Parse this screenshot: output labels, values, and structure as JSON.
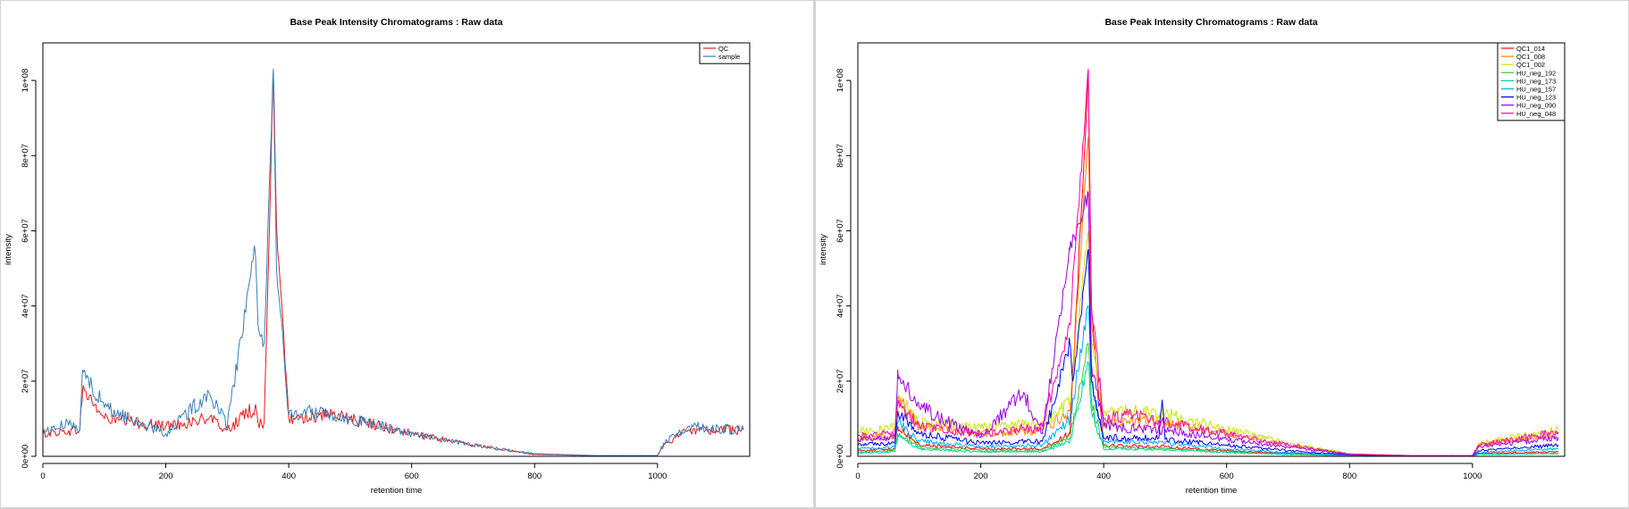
{
  "chart_data": [
    {
      "type": "line",
      "title": "Base Peak Intensity Chromatograms : Raw data",
      "xlabel": "retention time",
      "ylabel": "intensity",
      "xlim": [
        0,
        1150
      ],
      "ylim": [
        0,
        110000000
      ],
      "x_ticks": [
        0,
        200,
        400,
        600,
        800,
        1000
      ],
      "x_tick_labels": [
        "0",
        "200",
        "400",
        "600",
        "800",
        "1000"
      ],
      "y_ticks": [
        0,
        20000000,
        40000000,
        60000000,
        80000000,
        100000000
      ],
      "y_tick_labels": [
        "0e+00",
        "2e+07",
        "4e+07",
        "6e+07",
        "8e+07",
        "1e+08"
      ],
      "grid": false,
      "legend_position": "top-right",
      "legend": [
        {
          "name": "QC",
          "color": "#e41a1c"
        },
        {
          "name": "sample",
          "color": "#377eb8"
        }
      ],
      "series": [
        {
          "name": "QC",
          "color": "#e41a1c",
          "x": [
            0,
            60,
            65,
            100,
            200,
            270,
            300,
            345,
            350,
            360,
            375,
            380,
            400,
            450,
            500,
            600,
            700,
            800,
            900,
            1000,
            1010,
            1050,
            1140
          ],
          "y": [
            6000000,
            7000000,
            18000000,
            10000000,
            8000000,
            10000000,
            7000000,
            13000000,
            9000000,
            9000000,
            102000000,
            62000000,
            10000000,
            11000000,
            10000000,
            6000000,
            3000000,
            500000,
            200000,
            200000,
            3000000,
            7000000,
            7000000
          ]
        },
        {
          "name": "sample",
          "color": "#377eb8",
          "x": [
            0,
            50,
            60,
            65,
            100,
            200,
            270,
            300,
            345,
            350,
            360,
            375,
            380,
            400,
            450,
            500,
            600,
            700,
            800,
            900,
            1000,
            1010,
            1050,
            1140
          ],
          "y": [
            6500000,
            9000000,
            7000000,
            23000000,
            13000000,
            6000000,
            17000000,
            8000000,
            55000000,
            35000000,
            30000000,
            103000000,
            50000000,
            11000000,
            12000000,
            10000000,
            6000000,
            3000000,
            700000,
            200000,
            200000,
            3500000,
            8000000,
            7000000
          ]
        }
      ]
    },
    {
      "type": "line",
      "title": "Base Peak Intensity Chromatograms : Raw data",
      "xlabel": "retention time",
      "ylabel": "intensity",
      "xlim": [
        0,
        1150
      ],
      "ylim": [
        0,
        110000000
      ],
      "x_ticks": [
        0,
        200,
        400,
        600,
        800,
        1000
      ],
      "x_tick_labels": [
        "0",
        "200",
        "400",
        "600",
        "800",
        "1000"
      ],
      "y_ticks": [
        0,
        20000000,
        40000000,
        60000000,
        80000000,
        100000000
      ],
      "y_tick_labels": [
        "0e+00",
        "2e+07",
        "4e+07",
        "6e+07",
        "8e+07",
        "1e+08"
      ],
      "grid": false,
      "legend_position": "top-right",
      "legend": [
        {
          "name": "QC1_014",
          "color": "#ff0000"
        },
        {
          "name": "QC1_008",
          "color": "#ff8000"
        },
        {
          "name": "QC1_002",
          "color": "#c8e600"
        },
        {
          "name": "HU_neg_192",
          "color": "#33cc33"
        },
        {
          "name": "HU_neg_173",
          "color": "#00d2a0"
        },
        {
          "name": "HU_neg_157",
          "color": "#00aaff"
        },
        {
          "name": "HU_neg_123",
          "color": "#0000ee"
        },
        {
          "name": "HU_neg_090",
          "color": "#9900dd"
        },
        {
          "name": "HU_neg_048",
          "color": "#ff00aa"
        }
      ],
      "series": [
        {
          "name": "QC1_014",
          "color": "#ff0000",
          "x": [
            0,
            60,
            65,
            100,
            200,
            300,
            345,
            375,
            380,
            400,
            500,
            600,
            700,
            800,
            900,
            1000,
            1010,
            1140
          ],
          "y": [
            1500000,
            2000000,
            8000000,
            3000000,
            2000000,
            2000000,
            6000000,
            102000000,
            40000000,
            3000000,
            2500000,
            1500000,
            800000,
            300000,
            100000,
            100000,
            800000,
            1200000
          ]
        },
        {
          "name": "QC1_008",
          "color": "#ff8000",
          "x": [
            0,
            60,
            65,
            100,
            200,
            300,
            345,
            375,
            380,
            400,
            500,
            600,
            700,
            800,
            900,
            1000,
            1010,
            1140
          ],
          "y": [
            5000000,
            5500000,
            15000000,
            8000000,
            6000000,
            7000000,
            12000000,
            85000000,
            35000000,
            9000000,
            9000000,
            6000000,
            3000000,
            600000,
            200000,
            200000,
            3000000,
            6000000
          ]
        },
        {
          "name": "QC1_002",
          "color": "#c8e600",
          "x": [
            0,
            60,
            65,
            100,
            200,
            300,
            345,
            375,
            380,
            400,
            450,
            500,
            600,
            700,
            800,
            900,
            1000,
            1010,
            1140
          ],
          "y": [
            6500000,
            7500000,
            16000000,
            9000000,
            7500000,
            9000000,
            14000000,
            60000000,
            30000000,
            11000000,
            12000000,
            11000000,
            7000000,
            3500000,
            700000,
            200000,
            200000,
            3500000,
            7000000
          ]
        },
        {
          "name": "HU_neg_192",
          "color": "#33cc33",
          "x": [
            0,
            60,
            65,
            100,
            200,
            300,
            345,
            375,
            380,
            400,
            500,
            600,
            700,
            800,
            900,
            1000,
            1010,
            1140
          ],
          "y": [
            1000000,
            1500000,
            6000000,
            2500000,
            1500000,
            1500000,
            5000000,
            30000000,
            15000000,
            2500000,
            2000000,
            1200000,
            600000,
            200000,
            100000,
            100000,
            600000,
            800000
          ]
        },
        {
          "name": "HU_neg_173",
          "color": "#00d2a0",
          "x": [
            0,
            60,
            65,
            100,
            200,
            300,
            345,
            375,
            380,
            400,
            500,
            600,
            700,
            800,
            900,
            1000,
            1010,
            1140
          ],
          "y": [
            800000,
            1200000,
            5000000,
            2000000,
            1200000,
            1200000,
            4000000,
            25000000,
            12000000,
            2000000,
            1800000,
            1000000,
            500000,
            200000,
            100000,
            100000,
            500000,
            700000
          ]
        },
        {
          "name": "HU_neg_157",
          "color": "#00aaff",
          "x": [
            0,
            60,
            65,
            100,
            200,
            300,
            345,
            375,
            380,
            400,
            500,
            600,
            700,
            800,
            900,
            1000,
            1010,
            1140
          ],
          "y": [
            2000000,
            2500000,
            9000000,
            4000000,
            2500000,
            3000000,
            10000000,
            40000000,
            20000000,
            4000000,
            3500000,
            2000000,
            1000000,
            300000,
            100000,
            100000,
            1000000,
            2000000
          ]
        },
        {
          "name": "HU_neg_123",
          "color": "#0000ee",
          "x": [
            0,
            60,
            65,
            100,
            200,
            300,
            345,
            350,
            375,
            380,
            400,
            490,
            495,
            500,
            600,
            700,
            800,
            900,
            1000,
            1010,
            1140
          ],
          "y": [
            3000000,
            3500000,
            12000000,
            6000000,
            3500000,
            4000000,
            30000000,
            20000000,
            55000000,
            20000000,
            5000000,
            5000000,
            15000000,
            4500000,
            3000000,
            1500000,
            400000,
            100000,
            100000,
            1500000,
            3000000
          ]
        },
        {
          "name": "HU_neg_090",
          "color": "#9900dd",
          "x": [
            0,
            60,
            65,
            100,
            200,
            270,
            300,
            345,
            375,
            380,
            400,
            500,
            600,
            700,
            800,
            900,
            1000,
            1010,
            1140
          ],
          "y": [
            4500000,
            5000000,
            23000000,
            13000000,
            5000000,
            17000000,
            6000000,
            55000000,
            70000000,
            25000000,
            8000000,
            7000000,
            4500000,
            2500000,
            500000,
            150000,
            150000,
            2500000,
            5000000
          ]
        },
        {
          "name": "HU_neg_048",
          "color": "#ff00aa",
          "x": [
            0,
            60,
            65,
            100,
            200,
            300,
            345,
            375,
            380,
            400,
            450,
            500,
            600,
            700,
            800,
            900,
            1000,
            1010,
            1140
          ],
          "y": [
            5500000,
            6000000,
            14000000,
            8000000,
            6000000,
            8000000,
            35000000,
            103000000,
            40000000,
            10000000,
            11000000,
            9000000,
            6000000,
            3000000,
            600000,
            200000,
            200000,
            3000000,
            6500000
          ]
        }
      ]
    }
  ]
}
